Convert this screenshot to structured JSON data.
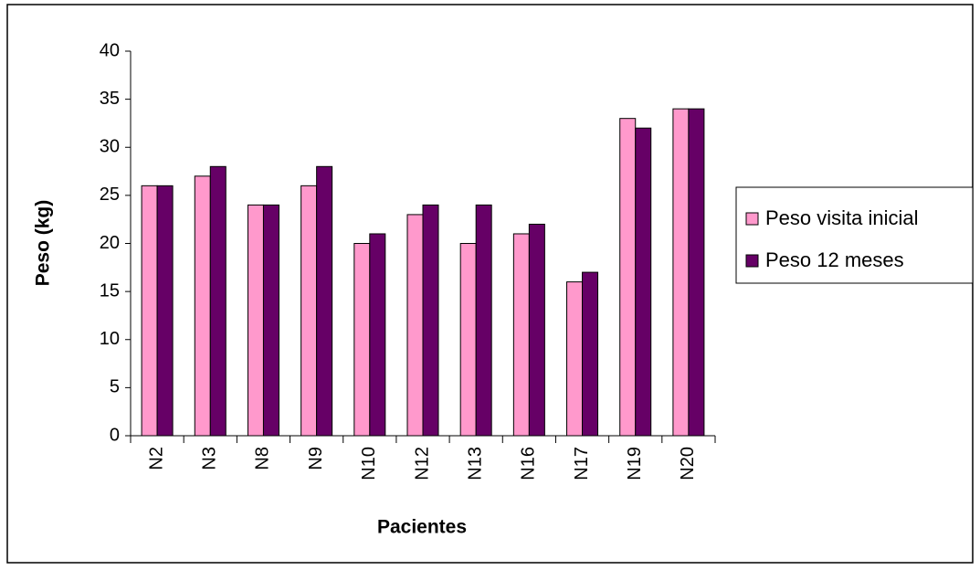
{
  "chart_data": {
    "type": "bar",
    "xlabel": "Pacientes",
    "ylabel": "Peso (kg)",
    "categories": [
      "N2",
      "N3",
      "N8",
      "N9",
      "N10",
      "N12",
      "N13",
      "N16",
      "N17",
      "N19",
      "N20"
    ],
    "series": [
      {
        "name": "Peso visita inicial",
        "color": "#ff99cc",
        "values": [
          26,
          27,
          24,
          26,
          20,
          23,
          20,
          21,
          16,
          33,
          34
        ]
      },
      {
        "name": "Peso 12 meses",
        "color": "#660066",
        "values": [
          26,
          28,
          24,
          28,
          21,
          24,
          24,
          22,
          17,
          32,
          34
        ]
      }
    ],
    "ylim": [
      0,
      40
    ],
    "yticks": [
      0,
      5,
      10,
      15,
      20,
      25,
      30,
      35,
      40
    ],
    "grid": false,
    "legend": "right"
  }
}
